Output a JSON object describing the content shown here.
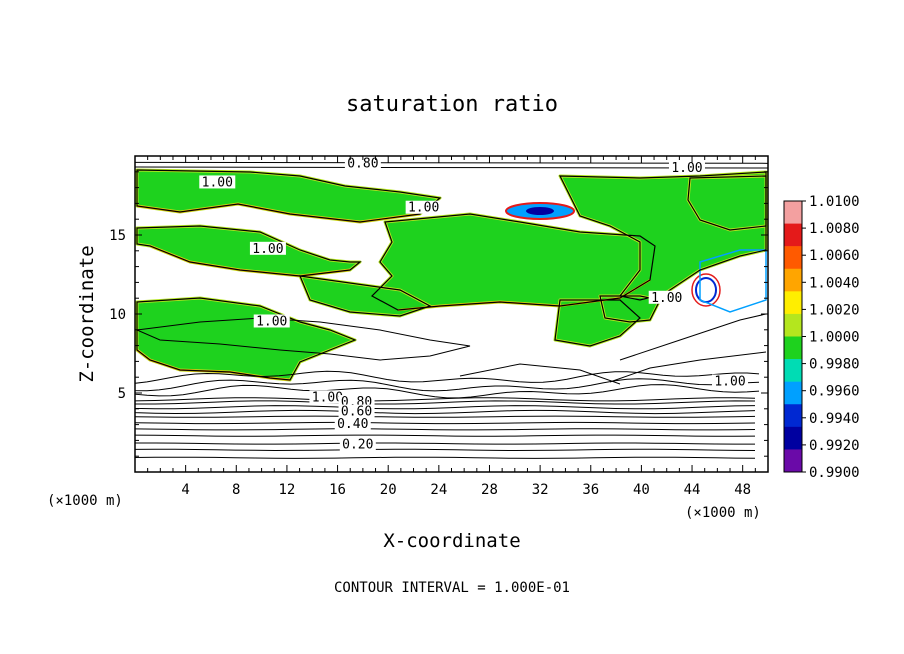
{
  "chart_data": {
    "type": "heatmap",
    "title": "saturation ratio",
    "xlabel": "X-coordinate",
    "ylabel": "Z-coordinate",
    "x_unit": "(×1000 m)",
    "z_unit": "(×1000 m)",
    "xlim": [
      0,
      50
    ],
    "ylim": [
      0,
      20
    ],
    "x_ticks": [
      4,
      8,
      12,
      16,
      20,
      24,
      28,
      32,
      36,
      40,
      44,
      48
    ],
    "y_ticks": [
      5,
      10,
      15
    ],
    "footer": "CONTOUR INTERVAL = 1.000E-01",
    "colorbar": {
      "levels": [
        "1.0100",
        "1.0080",
        "1.0060",
        "1.0040",
        "1.0020",
        "1.0000",
        "0.9980",
        "0.9960",
        "0.9940",
        "0.9920",
        "0.9900"
      ],
      "colors": [
        "#f3a0a0",
        "#e41a1a",
        "#ff5a00",
        "#ffa500",
        "#ffee00",
        "#b4e61e",
        "#1ed21e",
        "#00dcb4",
        "#00a0ff",
        "#0028d2",
        "#0000a0",
        "#6a0aa8"
      ]
    },
    "contour_labels": [
      {
        "text": "0.80",
        "x": 18.0,
        "z": 19.4
      },
      {
        "text": "1.00",
        "x": 43.6,
        "z": 19.1
      },
      {
        "text": "1.00",
        "x": 6.5,
        "z": 18.2
      },
      {
        "text": "1.00",
        "x": 22.8,
        "z": 16.6
      },
      {
        "text": "1.00",
        "x": 10.5,
        "z": 14.0
      },
      {
        "text": "1.00",
        "x": 10.8,
        "z": 9.4
      },
      {
        "text": "1.00",
        "x": 42.0,
        "z": 10.9
      },
      {
        "text": "1.00",
        "x": 47.0,
        "z": 5.6
      },
      {
        "text": "1.00",
        "x": 15.2,
        "z": 4.6
      },
      {
        "text": "0.80",
        "x": 17.5,
        "z": 4.3
      },
      {
        "text": "0.60",
        "x": 17.5,
        "z": 3.7
      },
      {
        "text": "0.40",
        "x": 17.2,
        "z": 2.9
      },
      {
        "text": "0.20",
        "x": 17.6,
        "z": 1.6
      }
    ]
  }
}
